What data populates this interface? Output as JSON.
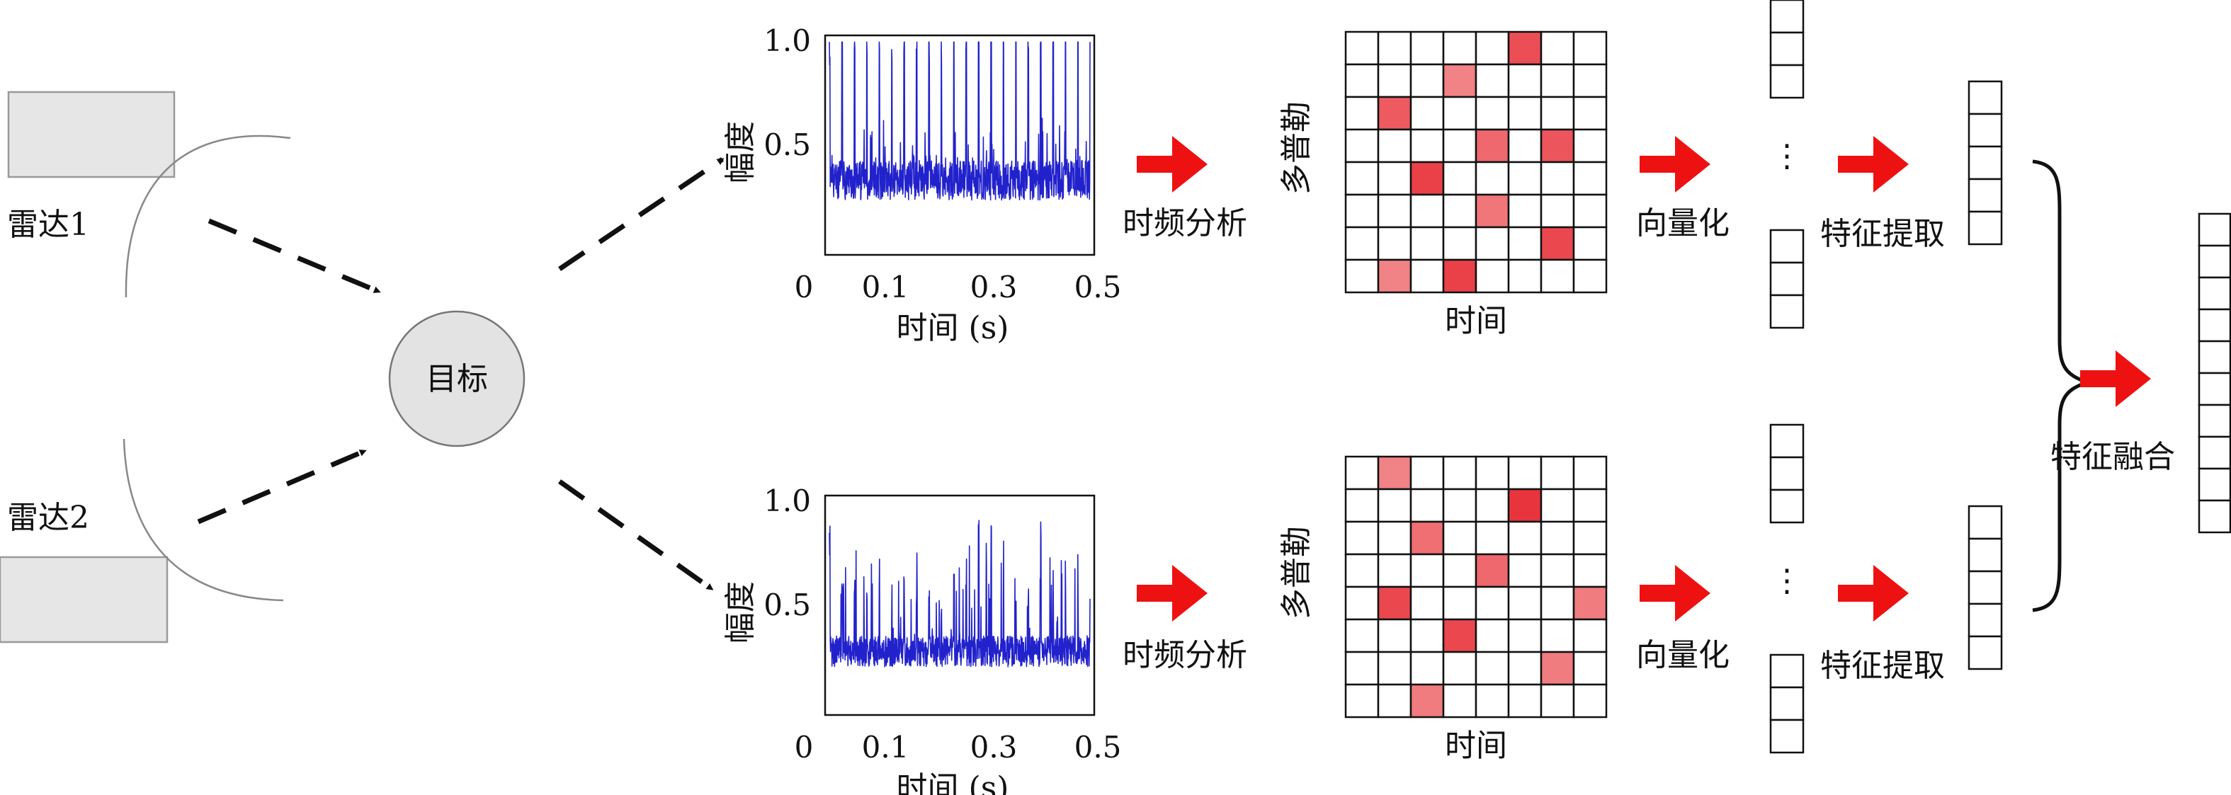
{
  "radars": [
    {
      "label": "雷达1"
    },
    {
      "label": "雷达2"
    }
  ],
  "target": {
    "label": "目标"
  },
  "branches": [
    {
      "signal": {
        "ylabel": "幅度",
        "xlabel": "时间 (s)",
        "yticks": [
          "1.0",
          "0.5"
        ],
        "xticks": [
          "0",
          "0.1",
          "0.3",
          "0.5"
        ]
      },
      "step1": "时频分析",
      "tf_map": {
        "ylabel": "多普勒",
        "xlabel": "时间",
        "highlights": [
          {
            "row": 0,
            "col": 5,
            "level": 0.8
          },
          {
            "row": 1,
            "col": 3,
            "level": 0.4
          },
          {
            "row": 2,
            "col": 1,
            "level": 0.7
          },
          {
            "row": 3,
            "col": 4,
            "level": 0.6
          },
          {
            "row": 3,
            "col": 6,
            "level": 0.75
          },
          {
            "row": 4,
            "col": 2,
            "level": 0.9
          },
          {
            "row": 5,
            "col": 4,
            "level": 0.5
          },
          {
            "row": 6,
            "col": 6,
            "level": 0.85
          },
          {
            "row": 7,
            "col": 1,
            "level": 0.4
          },
          {
            "row": 7,
            "col": 3,
            "level": 0.9
          }
        ]
      },
      "step2": "向量化",
      "step3": "特征提取"
    },
    {
      "signal": {
        "ylabel": "幅度",
        "xlabel": "时间 (s)",
        "yticks": [
          "1.0",
          "0.5"
        ],
        "xticks": [
          "0",
          "0.1",
          "0.3",
          "0.5"
        ]
      },
      "step1": "时频分析",
      "tf_map": {
        "ylabel": "多普勒",
        "xlabel": "时间",
        "highlights": [
          {
            "row": 0,
            "col": 1,
            "level": 0.4
          },
          {
            "row": 1,
            "col": 5,
            "level": 1.0
          },
          {
            "row": 2,
            "col": 2,
            "level": 0.55
          },
          {
            "row": 3,
            "col": 4,
            "level": 0.6
          },
          {
            "row": 4,
            "col": 1,
            "level": 0.85
          },
          {
            "row": 4,
            "col": 7,
            "level": 0.45
          },
          {
            "row": 5,
            "col": 3,
            "level": 0.85
          },
          {
            "row": 6,
            "col": 6,
            "level": 0.45
          },
          {
            "row": 7,
            "col": 2,
            "level": 0.45
          }
        ]
      },
      "step2": "向量化",
      "step3": "特征提取"
    }
  ],
  "ellipsis": "⋮",
  "fusion": {
    "label": "特征融合"
  },
  "colors": {
    "arrow": "#ee1111",
    "signal": "#2222cc",
    "radar_box": "#e6e6e6",
    "target_fill": "#e3e3e3",
    "heat_dark": "#e8343c",
    "heat_light": "#f7b7b7"
  }
}
